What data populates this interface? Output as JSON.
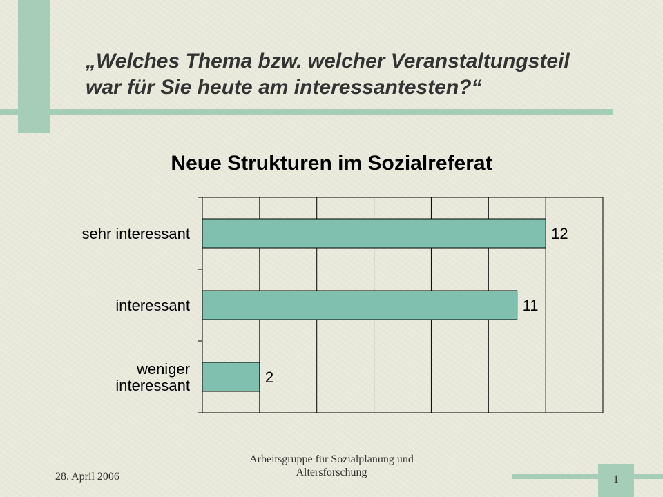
{
  "slide": {
    "title_line1": "„Welches Thema bzw. welcher Veranstaltungsteil",
    "title_line2": "war für Sie heute am interessantesten?“"
  },
  "colors": {
    "bar_fill": "#7fc0ae",
    "accent_decoration": "#a6cdb8"
  },
  "chart_data": {
    "type": "bar",
    "orientation": "horizontal",
    "title": "Neue Strukturen im Sozialreferat",
    "categories": [
      "sehr interessant",
      "interessant",
      "weniger interessant"
    ],
    "category_lines": [
      [
        "sehr interessant"
      ],
      [
        "interessant"
      ],
      [
        "weniger",
        "interessant"
      ]
    ],
    "values": [
      12,
      11,
      2
    ],
    "data_labels": [
      "12",
      "11",
      "2"
    ],
    "xlim": [
      0,
      14
    ],
    "x_gridlines": [
      2,
      4,
      6,
      8,
      10,
      12,
      14
    ],
    "grid": true,
    "legend": "none"
  },
  "footer": {
    "date": "28. April 2006",
    "org_line1": "Arbeitsgruppe für Sozialplanung und",
    "org_line2": "Altersforschung",
    "page_number": "1"
  }
}
